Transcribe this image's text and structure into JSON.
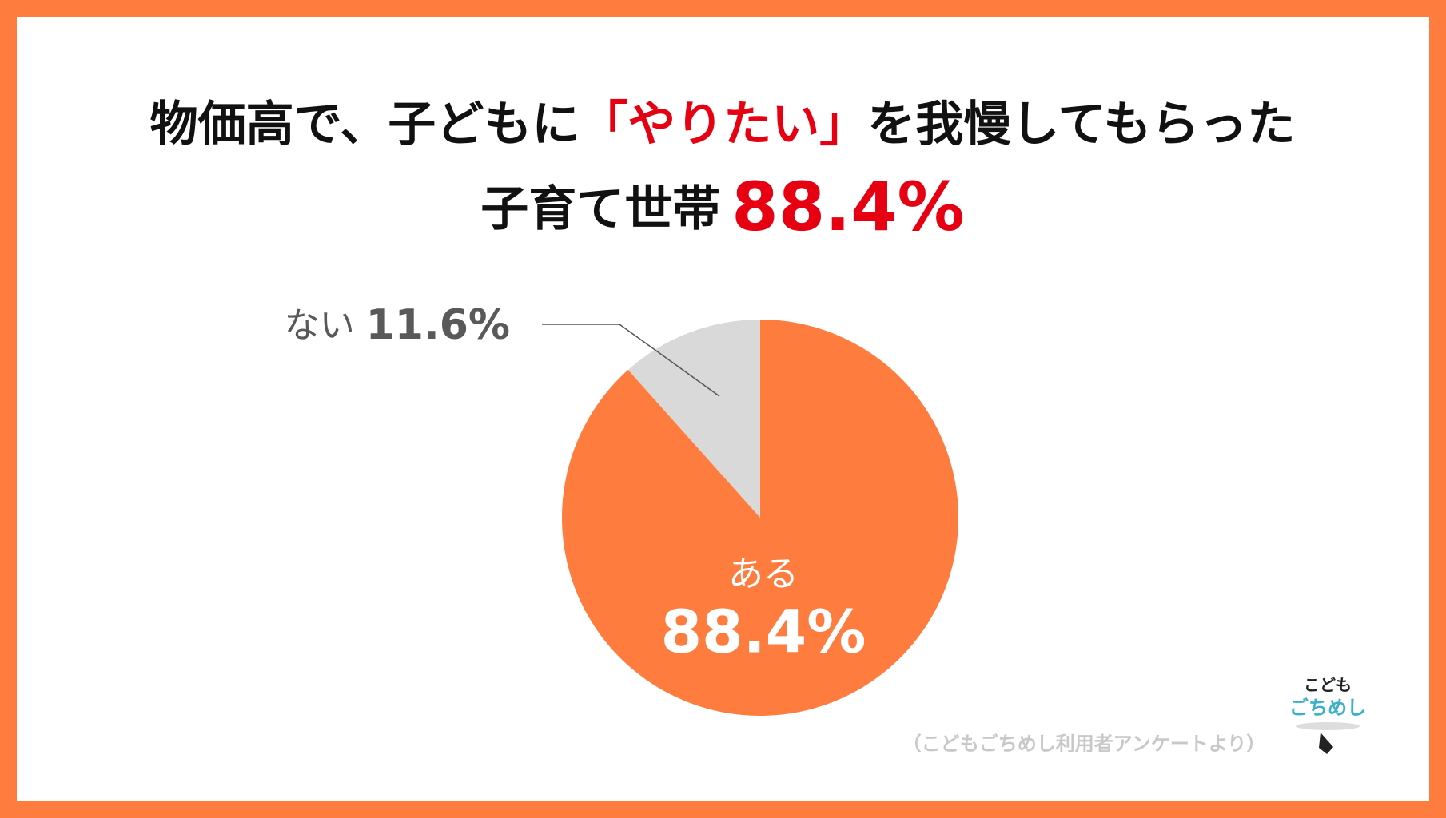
{
  "chart_data": {
    "type": "pie",
    "title": [
      "物価高で、子どもに",
      "「やりたい」",
      "を我慢してもらった"
    ],
    "subtitle": [
      "子育て世帯",
      "88.4%"
    ],
    "categories": [
      "ある",
      "ない"
    ],
    "values": [
      88.4,
      11.6
    ],
    "value_labels": [
      "88.4%",
      "11.6%"
    ],
    "colors": [
      "#ff7c3f",
      "#d9d9d9"
    ],
    "source": "（こどもごちめし利用者アンケートより）",
    "logo": [
      "こども",
      "ごちめし"
    ]
  }
}
